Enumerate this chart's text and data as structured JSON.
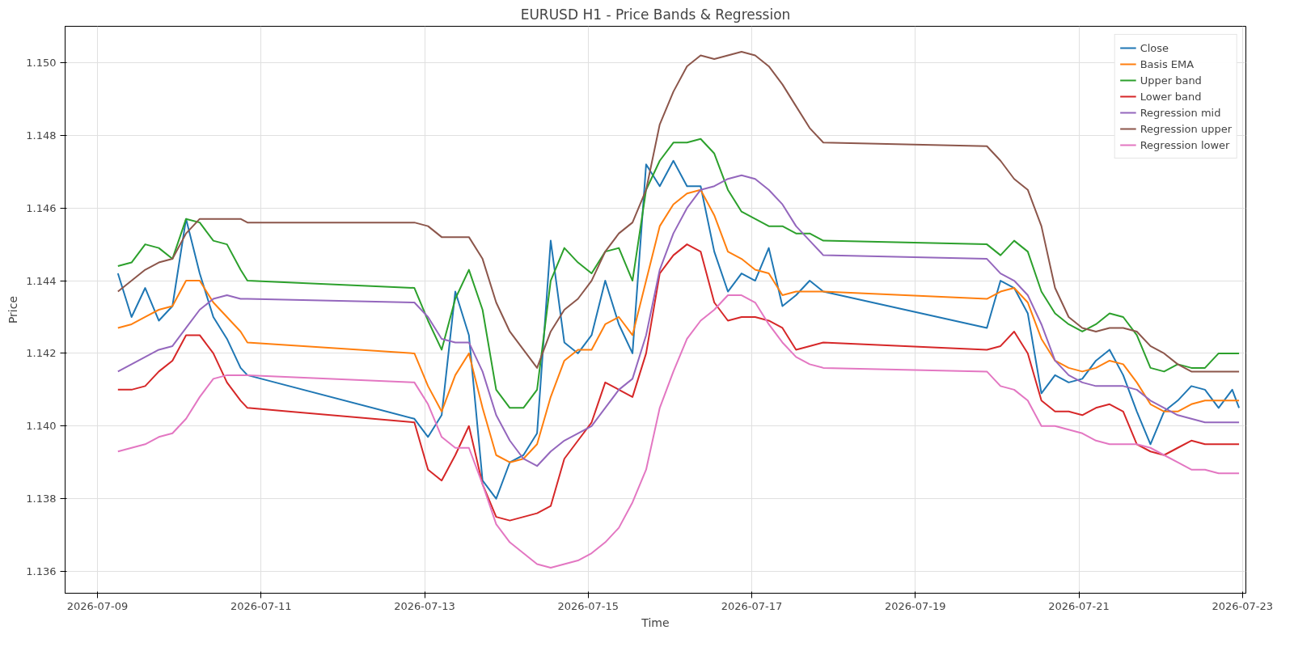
{
  "chart_data": {
    "type": "line",
    "title": "EURUSD H1 - Price Bands & Regression",
    "xlabel": "Time",
    "ylabel": "Price",
    "x": [
      "2026-07-09T06:00",
      "2026-07-09T10:00",
      "2026-07-09T14:00",
      "2026-07-09T18:00",
      "2026-07-09T22:00",
      "2026-07-10T02:00",
      "2026-07-10T06:00",
      "2026-07-10T10:00",
      "2026-07-10T14:00",
      "2026-07-10T18:00",
      "2026-07-10T20:00",
      "2026-07-12T21:00",
      "2026-07-13T01:00",
      "2026-07-13T05:00",
      "2026-07-13T09:00",
      "2026-07-13T13:00",
      "2026-07-13T17:00",
      "2026-07-13T21:00",
      "2026-07-14T01:00",
      "2026-07-14T05:00",
      "2026-07-14T09:00",
      "2026-07-14T13:00",
      "2026-07-14T17:00",
      "2026-07-14T21:00",
      "2026-07-15T01:00",
      "2026-07-15T05:00",
      "2026-07-15T09:00",
      "2026-07-15T13:00",
      "2026-07-15T17:00",
      "2026-07-15T21:00",
      "2026-07-16T01:00",
      "2026-07-16T05:00",
      "2026-07-16T09:00",
      "2026-07-16T13:00",
      "2026-07-16T17:00",
      "2026-07-16T21:00",
      "2026-07-17T01:00",
      "2026-07-17T05:00",
      "2026-07-17T09:00",
      "2026-07-17T13:00",
      "2026-07-17T17:00",
      "2026-07-17T21:00",
      "2026-07-19T21:00",
      "2026-07-20T01:00",
      "2026-07-20T05:00",
      "2026-07-20T09:00",
      "2026-07-20T13:00",
      "2026-07-20T17:00",
      "2026-07-20T21:00",
      "2026-07-21T01:00",
      "2026-07-21T05:00",
      "2026-07-21T09:00",
      "2026-07-21T13:00",
      "2026-07-21T17:00",
      "2026-07-21T21:00",
      "2026-07-22T01:00",
      "2026-07-22T05:00",
      "2026-07-22T09:00",
      "2026-07-22T13:00",
      "2026-07-22T17:00",
      "2026-07-22T21:00",
      "2026-07-22T23:00"
    ],
    "series": [
      {
        "name": "Close",
        "color": "#1f77b4",
        "values": [
          1.1442,
          1.143,
          1.1438,
          1.1429,
          1.1433,
          1.1457,
          1.1442,
          1.143,
          1.1424,
          1.1416,
          1.1414,
          1.1402,
          1.1397,
          1.1403,
          1.1437,
          1.1425,
          1.1385,
          1.138,
          1.139,
          1.1392,
          1.1398,
          1.1451,
          1.1423,
          1.142,
          1.1425,
          1.144,
          1.1428,
          1.142,
          1.1472,
          1.1466,
          1.1473,
          1.1466,
          1.1466,
          1.1448,
          1.1437,
          1.1442,
          1.144,
          1.1449,
          1.1433,
          1.1436,
          1.144,
          1.1437,
          1.1427,
          1.144,
          1.1438,
          1.1431,
          1.1409,
          1.1414,
          1.1412,
          1.1413,
          1.1418,
          1.1421,
          1.1414,
          1.1404,
          1.1395,
          1.1404,
          1.1407,
          1.1411,
          1.141,
          1.1405,
          1.141,
          1.1405
        ]
      },
      {
        "name": "Basis EMA",
        "color": "#ff7f0e",
        "values": [
          1.1427,
          1.1428,
          1.143,
          1.1432,
          1.1433,
          1.144,
          1.144,
          1.1434,
          1.143,
          1.1426,
          1.1423,
          1.142,
          1.1411,
          1.1404,
          1.1414,
          1.142,
          1.1405,
          1.1392,
          1.139,
          1.1391,
          1.1395,
          1.1408,
          1.1418,
          1.1421,
          1.1421,
          1.1428,
          1.143,
          1.1425,
          1.144,
          1.1455,
          1.1461,
          1.1464,
          1.1465,
          1.1458,
          1.1448,
          1.1446,
          1.1443,
          1.1442,
          1.1436,
          1.1437,
          1.1437,
          1.1437,
          1.1435,
          1.1437,
          1.1438,
          1.1434,
          1.1424,
          1.1418,
          1.1416,
          1.1415,
          1.1416,
          1.1418,
          1.1417,
          1.1412,
          1.1406,
          1.1404,
          1.1404,
          1.1406,
          1.1407,
          1.1407,
          1.1407,
          1.1407
        ]
      },
      {
        "name": "Upper band",
        "color": "#2ca02c",
        "values": [
          1.1444,
          1.1445,
          1.145,
          1.1449,
          1.1446,
          1.1457,
          1.1456,
          1.1451,
          1.145,
          1.1443,
          1.144,
          1.1438,
          1.1429,
          1.1421,
          1.1435,
          1.1443,
          1.1432,
          1.141,
          1.1405,
          1.1405,
          1.141,
          1.144,
          1.1449,
          1.1445,
          1.1442,
          1.1448,
          1.1449,
          1.144,
          1.1465,
          1.1473,
          1.1478,
          1.1478,
          1.1479,
          1.1475,
          1.1465,
          1.1459,
          1.1457,
          1.1455,
          1.1455,
          1.1453,
          1.1453,
          1.1451,
          1.145,
          1.1447,
          1.1451,
          1.1448,
          1.1437,
          1.1431,
          1.1428,
          1.1426,
          1.1428,
          1.1431,
          1.143,
          1.1425,
          1.1416,
          1.1415,
          1.1417,
          1.1416,
          1.1416,
          1.142,
          1.142,
          1.142
        ]
      },
      {
        "name": "Lower band",
        "color": "#d62728",
        "values": [
          1.141,
          1.141,
          1.1411,
          1.1415,
          1.1418,
          1.1425,
          1.1425,
          1.142,
          1.1412,
          1.1407,
          1.1405,
          1.1401,
          1.1388,
          1.1385,
          1.1392,
          1.14,
          1.1384,
          1.1375,
          1.1374,
          1.1375,
          1.1376,
          1.1378,
          1.1391,
          1.1396,
          1.1401,
          1.1412,
          1.141,
          1.1408,
          1.142,
          1.1442,
          1.1447,
          1.145,
          1.1448,
          1.1434,
          1.1429,
          1.143,
          1.143,
          1.1429,
          1.1427,
          1.1421,
          1.1422,
          1.1423,
          1.1421,
          1.1422,
          1.1426,
          1.142,
          1.1407,
          1.1404,
          1.1404,
          1.1403,
          1.1405,
          1.1406,
          1.1404,
          1.1395,
          1.1393,
          1.1392,
          1.1394,
          1.1396,
          1.1395,
          1.1395,
          1.1395,
          1.1395
        ]
      },
      {
        "name": "Regression mid",
        "color": "#9467bd",
        "values": [
          1.1415,
          1.1417,
          1.1419,
          1.1421,
          1.1422,
          1.1427,
          1.1432,
          1.1435,
          1.1436,
          1.1435,
          1.1435,
          1.1434,
          1.143,
          1.1424,
          1.1423,
          1.1423,
          1.1415,
          1.1403,
          1.1396,
          1.1391,
          1.1389,
          1.1393,
          1.1396,
          1.1398,
          1.14,
          1.1405,
          1.141,
          1.1413,
          1.1425,
          1.1443,
          1.1453,
          1.146,
          1.1465,
          1.1466,
          1.1468,
          1.1469,
          1.1468,
          1.1465,
          1.1461,
          1.1455,
          1.1451,
          1.1447,
          1.1446,
          1.1442,
          1.144,
          1.1436,
          1.1428,
          1.1418,
          1.1414,
          1.1412,
          1.1411,
          1.1411,
          1.1411,
          1.141,
          1.1407,
          1.1405,
          1.1403,
          1.1402,
          1.1401,
          1.1401,
          1.1401,
          1.1401
        ]
      },
      {
        "name": "Regression upper",
        "color": "#8c564b",
        "values": [
          1.1437,
          1.144,
          1.1443,
          1.1445,
          1.1446,
          1.1453,
          1.1457,
          1.1457,
          1.1457,
          1.1457,
          1.1456,
          1.1456,
          1.1455,
          1.1452,
          1.1452,
          1.1452,
          1.1446,
          1.1434,
          1.1426,
          1.1421,
          1.1416,
          1.1426,
          1.1432,
          1.1435,
          1.144,
          1.1448,
          1.1453,
          1.1456,
          1.1465,
          1.1483,
          1.1492,
          1.1499,
          1.1502,
          1.1501,
          1.1502,
          1.1503,
          1.1502,
          1.1499,
          1.1494,
          1.1488,
          1.1482,
          1.1478,
          1.1477,
          1.1473,
          1.1468,
          1.1465,
          1.1455,
          1.1438,
          1.143,
          1.1427,
          1.1426,
          1.1427,
          1.1427,
          1.1426,
          1.1422,
          1.142,
          1.1417,
          1.1415,
          1.1415,
          1.1415,
          1.1415,
          1.1415
        ]
      },
      {
        "name": "Regression lower",
        "color": "#e377c2",
        "values": [
          1.1393,
          1.1394,
          1.1395,
          1.1397,
          1.1398,
          1.1402,
          1.1408,
          1.1413,
          1.1414,
          1.1414,
          1.1414,
          1.1412,
          1.1406,
          1.1397,
          1.1394,
          1.1394,
          1.1384,
          1.1373,
          1.1368,
          1.1365,
          1.1362,
          1.1361,
          1.1362,
          1.1363,
          1.1365,
          1.1368,
          1.1372,
          1.1379,
          1.1388,
          1.1405,
          1.1415,
          1.1424,
          1.1429,
          1.1432,
          1.1436,
          1.1436,
          1.1434,
          1.1428,
          1.1423,
          1.1419,
          1.1417,
          1.1416,
          1.1415,
          1.1411,
          1.141,
          1.1407,
          1.14,
          1.14,
          1.1399,
          1.1398,
          1.1396,
          1.1395,
          1.1395,
          1.1395,
          1.1394,
          1.1392,
          1.139,
          1.1388,
          1.1388,
          1.1387,
          1.1387,
          1.1387
        ]
      }
    ],
    "xlim": [
      "2026-07-08T14:30",
      "2026-07-23T01:00"
    ],
    "xticks": [
      "2026-07-09",
      "2026-07-11",
      "2026-07-13",
      "2026-07-15",
      "2026-07-17",
      "2026-07-19",
      "2026-07-21",
      "2026-07-23"
    ],
    "ylim": [
      1.1354,
      1.151
    ],
    "yticks": [
      1.136,
      1.138,
      {
        "value": 1.14,
        "label": "1.140"
      },
      1.142,
      1.144,
      1.146,
      1.148,
      {
        "value": 1.15,
        "label": "1.150"
      }
    ],
    "grid": true,
    "legend": "top right",
    "line_style": "solid",
    "marker": "none"
  }
}
